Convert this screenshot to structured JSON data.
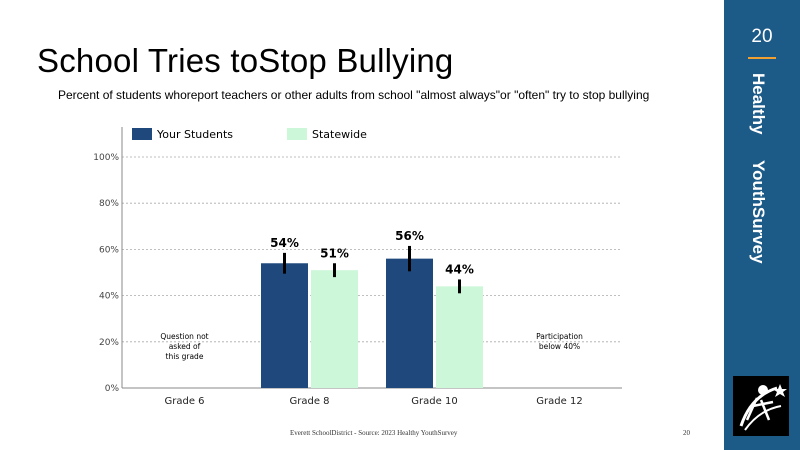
{
  "slide": {
    "title": "School Tries toStop Bullying",
    "subtitle": "Percent of students whoreport teachers or other adults from school \"almost always\"or \"often\" try to stop bullying",
    "page_number": "20",
    "sidebar_line1": "Healthy",
    "sidebar_line2": "YouthSurvey",
    "footer": "Everett  SchoolDistrict  -  Source:   2023  Healthy   YouthSurvey",
    "footer_page": "20",
    "colors": {
      "sidebar": "#1c5a87",
      "accent": "#f0a030"
    }
  },
  "chart_data": {
    "type": "bar",
    "categories": [
      "Grade 6",
      "Grade 8",
      "Grade 10",
      "Grade 12"
    ],
    "series": [
      {
        "name": "Your Students",
        "color": "#1f497d",
        "values": [
          null,
          54,
          56,
          null
        ],
        "labels": [
          "",
          "54%",
          "56%",
          ""
        ],
        "error": [
          null,
          4.5,
          5.5,
          null
        ]
      },
      {
        "name": "Statewide",
        "color": "#ccf7d9",
        "values": [
          null,
          51,
          44,
          null
        ],
        "labels": [
          "",
          "51%",
          "44%",
          ""
        ],
        "error": [
          null,
          3,
          3,
          null
        ]
      }
    ],
    "ylim": [
      0,
      100
    ],
    "yticks": [
      0,
      20,
      40,
      60,
      80,
      100
    ],
    "ytick_labels": [
      "0%",
      "20%",
      "40%",
      "60%",
      "80%",
      "100%"
    ],
    "grid": true,
    "legend": "top-left",
    "annotations": [
      {
        "category": "Grade 6",
        "lines": [
          "Question not",
          "asked of",
          "this grade"
        ]
      },
      {
        "category": "Grade 12",
        "lines": [
          "Participation",
          "below 40%"
        ]
      }
    ]
  }
}
